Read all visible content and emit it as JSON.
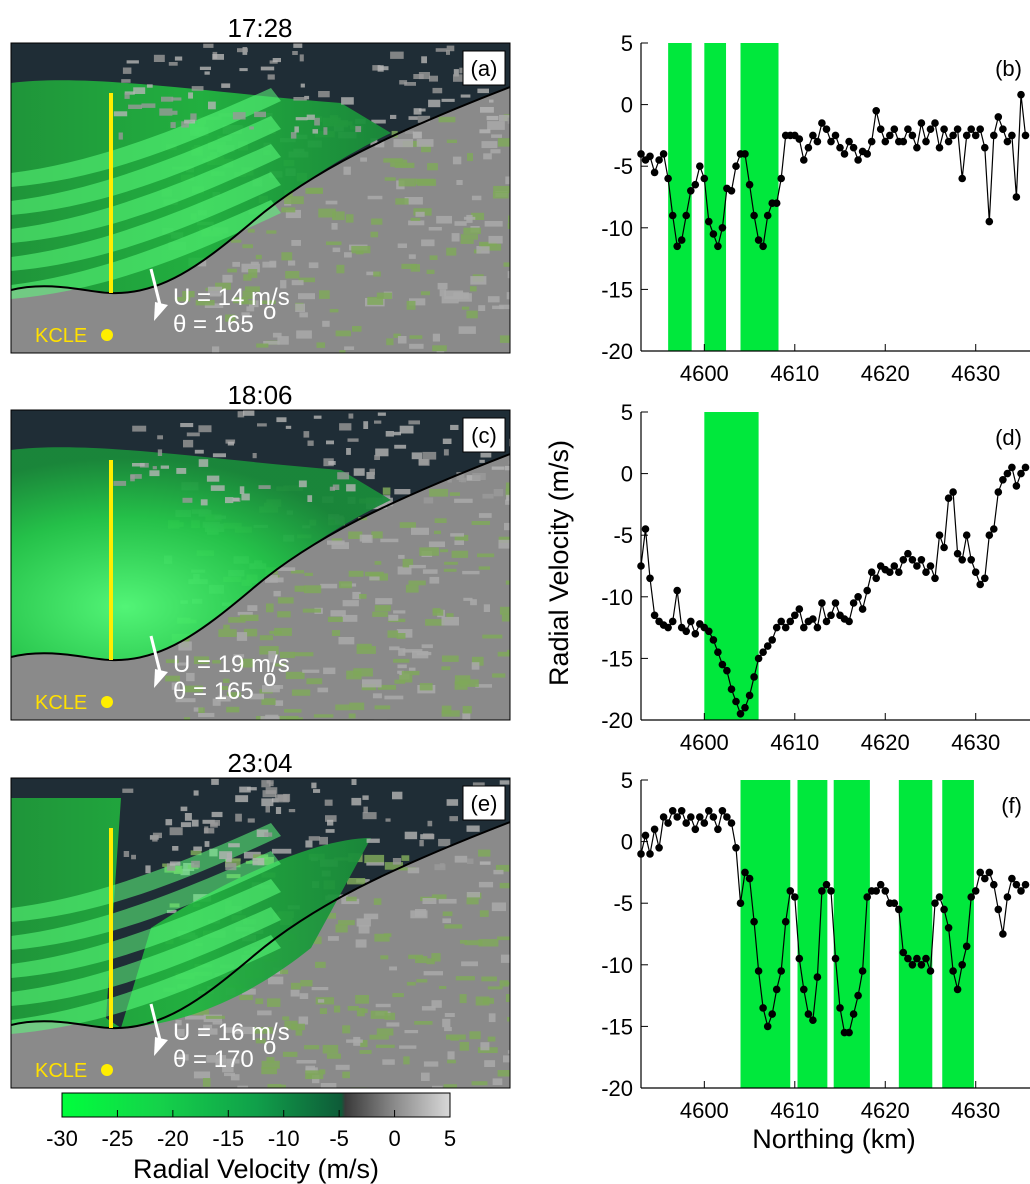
{
  "colors": {
    "bg_dark": "#1f2d36",
    "lake_green": "#1fbf3a",
    "land_green": "#7fa85a",
    "land_gray": "#8a8a8a",
    "band_green": "#00e83c",
    "marker": "#000000",
    "transect": "#ffee00"
  },
  "radar_panels": [
    {
      "time": "17:28",
      "label": "(a)",
      "U": "U = 14 m/s",
      "theta": "θ = 165",
      "theta_sup": "o",
      "site": "KCLE",
      "band_count": 5,
      "narrow_lake": false
    },
    {
      "time": "18:06",
      "label": "(c)",
      "U": "U = 19 m/s",
      "theta": "θ = 165",
      "theta_sup": "o",
      "site": "KCLE",
      "band_count": 0,
      "narrow_lake": false
    },
    {
      "time": "23:04",
      "label": "(e)",
      "U": "U = 16 m/s",
      "theta": "θ = 170",
      "theta_sup": "o",
      "site": "KCLE",
      "band_count": 5,
      "narrow_lake": true
    }
  ],
  "colorbar": {
    "ticks": [
      "-30",
      "-25",
      "-20",
      "-15",
      "-10",
      "-5",
      "0",
      "5"
    ],
    "range": [
      -30,
      5
    ],
    "label": "Radial Velocity (m/s)"
  },
  "shared_ylabel": "Radial Velocity (m/s)",
  "shared_xlabel": "Northing (km)",
  "chart_data": [
    {
      "type": "line",
      "label": "(b)",
      "xlim": [
        4593,
        4636
      ],
      "ylim": [
        -20,
        5
      ],
      "xticks": [
        4600,
        4610,
        4620,
        4630
      ],
      "yticks": [
        5,
        0,
        -5,
        -10,
        -15,
        -20
      ],
      "bands": [
        [
          4596.0,
          4598.6
        ],
        [
          4600.0,
          4602.4
        ],
        [
          4604.0,
          4608.2
        ]
      ],
      "x": [
        4593.0,
        4593.5,
        4594.0,
        4594.5,
        4595.0,
        4595.5,
        4596.0,
        4596.5,
        4597.0,
        4597.5,
        4598.0,
        4598.5,
        4599.0,
        4599.5,
        4600.0,
        4600.5,
        4601.0,
        4601.5,
        4602.0,
        4602.5,
        4603.0,
        4603.5,
        4604.0,
        4604.5,
        4605.0,
        4605.5,
        4606.0,
        4606.5,
        4607.0,
        4607.5,
        4608.0,
        4608.5,
        4609.0,
        4609.5,
        4610.0,
        4610.5,
        4611.0,
        4611.5,
        4612.0,
        4612.5,
        4613.0,
        4613.5,
        4614.0,
        4614.5,
        4615.0,
        4615.5,
        4616.0,
        4616.5,
        4617.0,
        4617.5,
        4618.0,
        4618.5,
        4619.0,
        4619.5,
        4620.0,
        4620.5,
        4621.0,
        4621.5,
        4622.0,
        4622.5,
        4623.0,
        4623.5,
        4624.0,
        4624.5,
        4625.0,
        4625.5,
        4626.0,
        4626.5,
        4627.0,
        4627.5,
        4628.0,
        4628.5,
        4629.0,
        4629.5,
        4630.0,
        4630.5,
        4631.0,
        4631.5,
        4632.0,
        4632.5,
        4633.0,
        4633.5,
        4634.0,
        4634.5,
        4635.0,
        4635.5
      ],
      "y": [
        -4.0,
        -4.5,
        -4.2,
        -5.5,
        -4.5,
        -4.0,
        -6.0,
        -9.0,
        -11.5,
        -11.0,
        -9.0,
        -7.0,
        -6.5,
        -5.0,
        -6.0,
        -9.5,
        -10.5,
        -11.5,
        -10.0,
        -6.8,
        -7.0,
        -5.0,
        -4.0,
        -4.0,
        -6.5,
        -9.0,
        -11.0,
        -11.5,
        -9.0,
        -8.0,
        -8.0,
        -6.0,
        -2.5,
        -2.5,
        -2.5,
        -2.8,
        -4.5,
        -3.5,
        -2.5,
        -3.0,
        -1.5,
        -2.0,
        -3.0,
        -2.5,
        -3.5,
        -4.0,
        -3.0,
        -3.5,
        -4.5,
        -3.8,
        -4.0,
        -3.0,
        -0.5,
        -2.0,
        -3.0,
        -2.5,
        -2.0,
        -3.0,
        -3.0,
        -2.0,
        -2.5,
        -3.5,
        -1.5,
        -3.0,
        -2.0,
        -1.5,
        -3.5,
        -2.0,
        -3.0,
        -2.5,
        -2.0,
        -6.0,
        -2.5,
        -2.0,
        -2.5,
        -2.0,
        -3.5,
        -9.5,
        -2.5,
        -1.0,
        -2.0,
        -3.0,
        -2.5,
        -7.5,
        0.8,
        -2.5
      ]
    },
    {
      "type": "line",
      "label": "(d)",
      "xlim": [
        4593,
        4636
      ],
      "ylim": [
        -20,
        5
      ],
      "xticks": [
        4600,
        4610,
        4620,
        4630
      ],
      "yticks": [
        5,
        0,
        -5,
        -10,
        -15,
        -20
      ],
      "bands": [
        [
          4600.0,
          4606.0
        ]
      ],
      "x": [
        4593.0,
        4593.5,
        4594.0,
        4594.5,
        4595.0,
        4595.5,
        4596.0,
        4596.5,
        4597.0,
        4597.5,
        4598.0,
        4598.5,
        4599.0,
        4599.5,
        4600.0,
        4600.5,
        4601.0,
        4601.5,
        4602.0,
        4602.5,
        4603.0,
        4603.5,
        4604.0,
        4604.5,
        4605.0,
        4605.5,
        4606.0,
        4606.5,
        4607.0,
        4607.5,
        4608.0,
        4608.5,
        4609.0,
        4609.5,
        4610.0,
        4610.5,
        4611.0,
        4611.5,
        4612.0,
        4612.5,
        4613.0,
        4613.5,
        4614.0,
        4614.5,
        4615.0,
        4615.5,
        4616.0,
        4616.5,
        4617.0,
        4617.5,
        4618.0,
        4618.5,
        4619.0,
        4619.5,
        4620.0,
        4620.5,
        4621.0,
        4621.5,
        4622.0,
        4622.5,
        4623.0,
        4623.5,
        4624.0,
        4624.5,
        4625.0,
        4625.5,
        4626.0,
        4626.5,
        4627.0,
        4627.5,
        4628.0,
        4628.5,
        4629.0,
        4629.5,
        4630.0,
        4630.5,
        4631.0,
        4631.5,
        4632.0,
        4632.5,
        4633.0,
        4633.5,
        4634.0,
        4634.5,
        4635.0,
        4635.5
      ],
      "y": [
        -7.5,
        -4.5,
        -8.5,
        -11.5,
        -12.0,
        -12.3,
        -12.5,
        -12.0,
        -9.5,
        -12.5,
        -12.8,
        -12.0,
        -13.0,
        -12.2,
        -12.5,
        -12.8,
        -13.5,
        -14.5,
        -15.5,
        -16.0,
        -17.5,
        -18.5,
        -19.5,
        -19.0,
        -18.0,
        -16.5,
        -15.0,
        -14.5,
        -14.0,
        -13.5,
        -12.5,
        -12.0,
        -12.5,
        -12.0,
        -11.5,
        -11.0,
        -12.5,
        -12.0,
        -11.8,
        -12.5,
        -10.5,
        -12.0,
        -11.5,
        -10.5,
        -11.5,
        -11.8,
        -12.0,
        -10.5,
        -10.0,
        -11.0,
        -9.5,
        -8.0,
        -8.5,
        -7.5,
        -7.8,
        -8.0,
        -7.5,
        -8.0,
        -7.0,
        -6.5,
        -7.0,
        -7.5,
        -7.0,
        -8.0,
        -7.5,
        -8.5,
        -5.0,
        -6.0,
        -2.0,
        -1.5,
        -6.5,
        -7.0,
        -5.0,
        -7.0,
        -8.0,
        -9.0,
        -8.5,
        -5.0,
        -4.5,
        -1.5,
        -0.5,
        0.0,
        0.5,
        -1.0,
        0.0,
        0.5
      ]
    },
    {
      "type": "line",
      "label": "(f)",
      "xlim": [
        4593,
        4636
      ],
      "ylim": [
        -20,
        5
      ],
      "xticks": [
        4600,
        4610,
        4620,
        4630
      ],
      "yticks": [
        5,
        0,
        -5,
        -10,
        -15,
        -20
      ],
      "bands": [
        [
          4604.0,
          4609.5
        ],
        [
          4610.3,
          4613.6
        ],
        [
          4614.3,
          4618.3
        ],
        [
          4621.5,
          4625.2
        ],
        [
          4626.3,
          4629.8
        ]
      ],
      "x": [
        4593.0,
        4593.5,
        4594.0,
        4594.5,
        4595.0,
        4595.5,
        4596.0,
        4596.5,
        4597.0,
        4597.5,
        4598.0,
        4598.5,
        4599.0,
        4599.5,
        4600.0,
        4600.5,
        4601.0,
        4601.5,
        4602.0,
        4602.5,
        4603.0,
        4603.5,
        4604.0,
        4604.5,
        4605.0,
        4605.5,
        4606.0,
        4606.5,
        4607.0,
        4607.5,
        4608.0,
        4608.5,
        4609.0,
        4609.5,
        4610.0,
        4610.5,
        4611.0,
        4611.5,
        4612.0,
        4612.5,
        4613.0,
        4613.5,
        4614.0,
        4614.5,
        4615.0,
        4615.5,
        4616.0,
        4616.5,
        4617.0,
        4617.5,
        4618.0,
        4618.5,
        4619.0,
        4619.5,
        4620.0,
        4620.5,
        4621.0,
        4621.5,
        4622.0,
        4622.5,
        4623.0,
        4623.5,
        4624.0,
        4624.5,
        4625.0,
        4625.5,
        4626.0,
        4626.5,
        4627.0,
        4627.5,
        4628.0,
        4628.5,
        4629.0,
        4629.5,
        4630.0,
        4630.5,
        4631.0,
        4631.5,
        4632.0,
        4632.5,
        4633.0,
        4633.5,
        4634.0,
        4634.5,
        4635.0,
        4635.5
      ],
      "y": [
        -1.0,
        0.5,
        -1.0,
        1.0,
        -0.5,
        2.0,
        1.5,
        2.5,
        2.0,
        2.5,
        1.5,
        2.0,
        1.0,
        2.0,
        1.5,
        2.5,
        2.0,
        1.0,
        2.5,
        2.0,
        1.5,
        -0.5,
        -5.0,
        -2.5,
        -3.0,
        -6.5,
        -10.5,
        -13.5,
        -15.0,
        -14.0,
        -12.0,
        -10.5,
        -6.5,
        -4.0,
        -4.5,
        -9.5,
        -12.0,
        -14.0,
        -14.5,
        -11.0,
        -4.0,
        -3.5,
        -4.0,
        -9.5,
        -13.5,
        -15.5,
        -15.5,
        -14.0,
        -12.5,
        -10.5,
        -4.5,
        -4.0,
        -4.0,
        -3.5,
        -4.0,
        -5.0,
        -5.0,
        -5.5,
        -9.0,
        -9.5,
        -10.0,
        -9.5,
        -10.0,
        -9.5,
        -10.5,
        -5.0,
        -4.5,
        -5.5,
        -7.0,
        -10.5,
        -12.0,
        -10.0,
        -8.5,
        -4.5,
        -4.0,
        -2.5,
        -3.0,
        -2.5,
        -3.5,
        -5.5,
        -7.5,
        -4.5,
        -3.0,
        -3.5,
        -4.0,
        -3.5
      ]
    }
  ]
}
